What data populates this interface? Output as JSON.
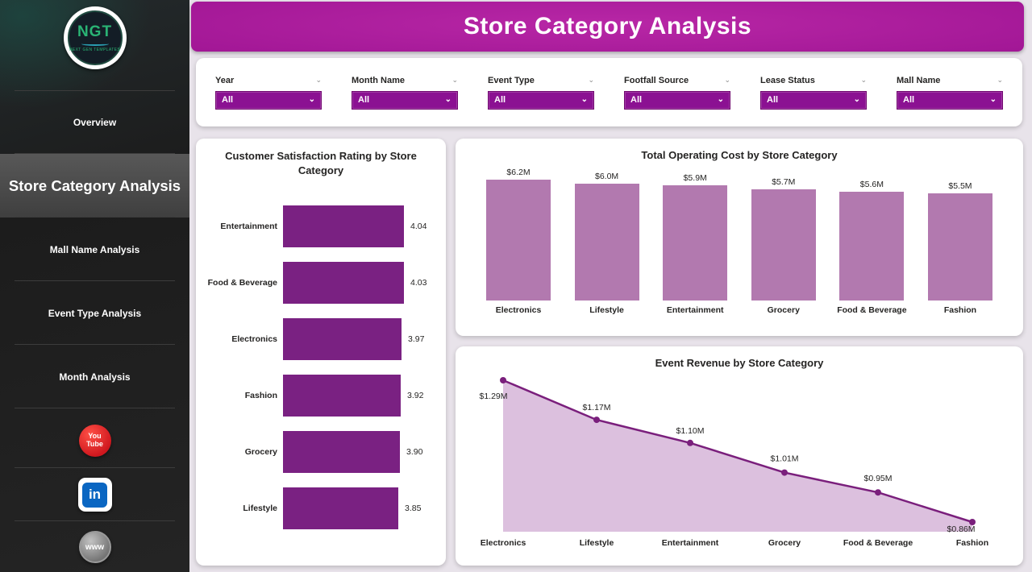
{
  "colors": {
    "header_purple": "#9d1392",
    "slicer_purple": "#8b1192",
    "satisfaction_bar": "#7a2182",
    "opcost_bar": "#b279af",
    "revenue_line": "#7a1f7c",
    "revenue_fill": "#dcc0de",
    "sidebar_bg": "#1e1e1e",
    "page_bg": "#e8e3ea"
  },
  "sidebar": {
    "logo": {
      "text": "NGT",
      "subtext": "NEXT GEN TEMPLATES"
    },
    "items": [
      {
        "label": "Overview",
        "active": false
      },
      {
        "label": "Store Category Analysis",
        "active": true
      },
      {
        "label": "Mall Name Analysis",
        "active": false
      },
      {
        "label": "Event Type Analysis",
        "active": false
      },
      {
        "label": "Month Analysis",
        "active": false
      }
    ],
    "social": {
      "youtube": {
        "line1": "You",
        "line2": "Tube"
      },
      "linkedin": {
        "label": "in"
      },
      "website": {
        "label": "www"
      }
    }
  },
  "header": {
    "title": "Store Category Analysis"
  },
  "filters": [
    {
      "label": "Year",
      "value": "All"
    },
    {
      "label": "Month Name",
      "value": "All"
    },
    {
      "label": "Event Type",
      "value": "All"
    },
    {
      "label": "Footfall Source",
      "value": "All"
    },
    {
      "label": "Lease Status",
      "value": "All"
    },
    {
      "label": "Mall Name",
      "value": "All"
    }
  ],
  "chart_data": [
    {
      "type": "bar",
      "orientation": "horizontal",
      "title": "Customer Satisfaction Rating by Store Category",
      "categories": [
        "Entertainment",
        "Food & Beverage",
        "Electronics",
        "Fashion",
        "Grocery",
        "Lifestyle"
      ],
      "values": [
        4.04,
        4.03,
        3.97,
        3.92,
        3.9,
        3.85
      ],
      "value_labels": [
        "4.04",
        "4.03",
        "3.97",
        "3.92",
        "3.90",
        "3.85"
      ],
      "xlim": [
        0,
        4.04
      ],
      "bar_color": "#7a2182",
      "grid": false,
      "legend": "none"
    },
    {
      "type": "bar",
      "orientation": "vertical",
      "title": "Total Operating Cost by Store Category",
      "categories": [
        "Electronics",
        "Lifestyle",
        "Entertainment",
        "Grocery",
        "Food & Beverage",
        "Fashion"
      ],
      "values": [
        6.2,
        6.0,
        5.9,
        5.7,
        5.6,
        5.5
      ],
      "value_labels": [
        "$6.2M",
        "$6.0M",
        "$5.9M",
        "$5.7M",
        "$5.6M",
        "$5.5M"
      ],
      "ylim": [
        0,
        6.2
      ],
      "bar_color": "#b279af",
      "grid": false,
      "legend": "none"
    },
    {
      "type": "area",
      "title": "Event Revenue by Store Category",
      "categories": [
        "Electronics",
        "Lifestyle",
        "Entertainment",
        "Grocery",
        "Food & Beverage",
        "Fashion"
      ],
      "values": [
        1.29,
        1.17,
        1.1,
        1.01,
        0.95,
        0.86
      ],
      "value_labels": [
        "$1.29M",
        "$1.17M",
        "$1.10M",
        "$1.01M",
        "$0.95M",
        "$0.86M"
      ],
      "line_color": "#7a1f7c",
      "fill_color": "#dcc0de",
      "grid": false,
      "legend": "none"
    }
  ]
}
